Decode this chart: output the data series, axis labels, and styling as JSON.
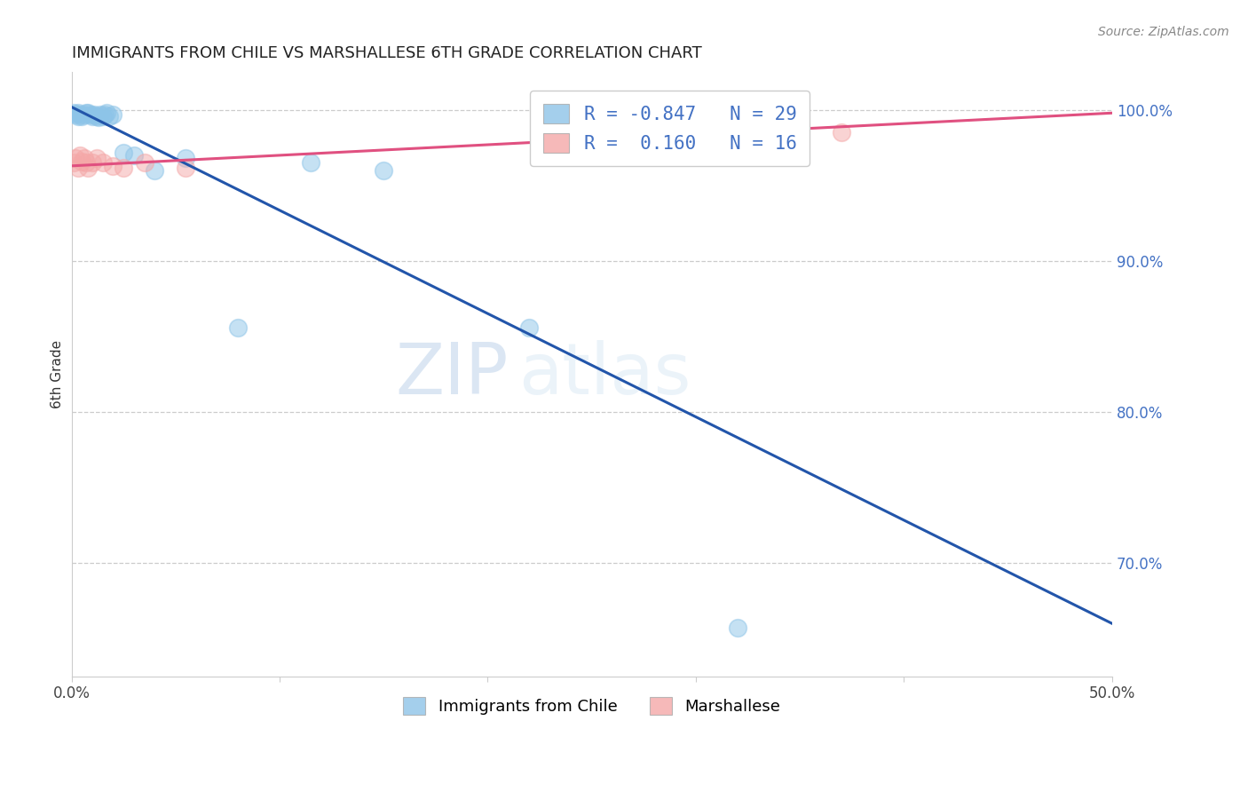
{
  "title": "IMMIGRANTS FROM CHILE VS MARSHALLESE 6TH GRADE CORRELATION CHART",
  "source": "Source: ZipAtlas.com",
  "ylabel": "6th Grade",
  "xlim": [
    0.0,
    0.5
  ],
  "ylim": [
    0.625,
    1.025
  ],
  "xticks": [
    0.0,
    0.1,
    0.2,
    0.3,
    0.4,
    0.5
  ],
  "xtick_labels": [
    "0.0%",
    "",
    "",
    "",
    "",
    "50.0%"
  ],
  "ytick_right": [
    0.7,
    0.8,
    0.9,
    1.0
  ],
  "ytick_right_labels": [
    "70.0%",
    "80.0%",
    "90.0%",
    "100.0%"
  ],
  "grid_color": "#cccccc",
  "background_color": "#ffffff",
  "watermark_zip": "ZIP",
  "watermark_atlas": "atlas",
  "legend_line1": "R = -0.847   N = 29",
  "legend_line2": "R =  0.160   N = 16",
  "blue_color": "#8dc4e8",
  "pink_color": "#f4a8a8",
  "blue_line_color": "#2255aa",
  "pink_line_color": "#e05080",
  "scatter_alpha": 0.5,
  "scatter_size": 200,
  "blue_points_x": [
    0.001,
    0.002,
    0.003,
    0.003,
    0.004,
    0.005,
    0.006,
    0.007,
    0.008,
    0.009,
    0.01,
    0.011,
    0.012,
    0.013,
    0.014,
    0.015,
    0.016,
    0.017,
    0.018,
    0.02,
    0.025,
    0.03,
    0.04,
    0.055,
    0.08,
    0.115,
    0.15,
    0.22,
    0.32
  ],
  "blue_points_y": [
    0.998,
    0.997,
    0.996,
    0.998,
    0.997,
    0.996,
    0.997,
    0.998,
    0.998,
    0.997,
    0.996,
    0.997,
    0.996,
    0.995,
    0.997,
    0.996,
    0.997,
    0.998,
    0.996,
    0.997,
    0.972,
    0.97,
    0.96,
    0.968,
    0.856,
    0.965,
    0.96,
    0.856,
    0.657
  ],
  "pink_points_x": [
    0.001,
    0.002,
    0.003,
    0.004,
    0.005,
    0.006,
    0.007,
    0.008,
    0.01,
    0.012,
    0.015,
    0.02,
    0.025,
    0.035,
    0.055,
    0.37
  ],
  "pink_points_y": [
    0.965,
    0.968,
    0.962,
    0.97,
    0.966,
    0.968,
    0.965,
    0.962,
    0.965,
    0.968,
    0.965,
    0.963,
    0.962,
    0.965,
    0.962,
    0.985
  ],
  "blue_line_x0": 0.0,
  "blue_line_y0": 1.002,
  "blue_line_x1": 0.5,
  "blue_line_y1": 0.66,
  "pink_line_x0": 0.0,
  "pink_line_y0": 0.963,
  "pink_line_x1": 0.5,
  "pink_line_y1": 0.998
}
